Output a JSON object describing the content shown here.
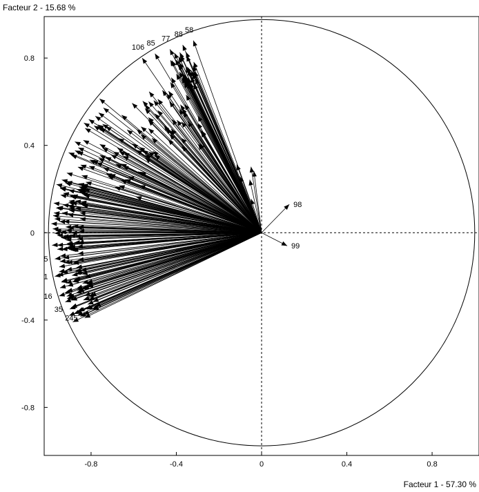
{
  "chart_data": {
    "type": "scatter",
    "subtype": "correlation-circle-vectors",
    "xlabel": "Facteur 1  -  57.30 %",
    "ylabel": "Facteur 2  -  15.68 %",
    "xlim": [
      -1.02,
      1.02
    ],
    "ylim": [
      -1.02,
      0.99
    ],
    "x_ticks": [
      -0.8,
      -0.4,
      0,
      0.4,
      0.8
    ],
    "y_ticks": [
      -0.8,
      -0.4,
      0,
      0.4,
      0.8
    ],
    "x_tick_labels": [
      "-0.8",
      "-0.4",
      "0",
      "0.4",
      "0.8"
    ],
    "y_tick_labels": [
      "-0.8",
      "-0.4",
      "0",
      "0.4",
      "0.8"
    ],
    "grid": false,
    "unit_circle": true,
    "origin_axes_dashed": true,
    "labeled_vectors": [
      {
        "label": "58",
        "x": -0.32,
        "y": 0.88
      },
      {
        "label": "88",
        "x": -0.37,
        "y": 0.86
      },
      {
        "label": "77",
        "x": -0.43,
        "y": 0.84
      },
      {
        "label": "85",
        "x": -0.5,
        "y": 0.82
      },
      {
        "label": "106",
        "x": -0.56,
        "y": 0.8
      },
      {
        "label": "98",
        "x": 0.13,
        "y": 0.13
      },
      {
        "label": "99",
        "x": 0.12,
        "y": -0.06
      },
      {
        "label": "275",
        "x": -0.97,
        "y": -0.12
      },
      {
        "label": "301",
        "x": -0.97,
        "y": -0.2
      },
      {
        "label": "216",
        "x": -0.95,
        "y": -0.29
      },
      {
        "label": "35",
        "x": -0.9,
        "y": -0.35
      },
      {
        "label": "245",
        "x": -0.83,
        "y": -0.39
      }
    ],
    "unlabeled_vector_groups": [
      {
        "angle_deg": [
          112,
          119
        ],
        "radius": [
          0.75,
          0.92
        ],
        "count": 40
      },
      {
        "angle_deg": [
          119,
          140
        ],
        "radius": [
          0.5,
          0.85
        ],
        "count": 45
      },
      {
        "angle_deg": [
          140,
          165
        ],
        "radius": [
          0.6,
          0.98
        ],
        "count": 70
      },
      {
        "angle_deg": [
          165,
          185
        ],
        "radius": [
          0.85,
          0.99
        ],
        "count": 80
      },
      {
        "angle_deg": [
          185,
          205
        ],
        "radius": [
          0.85,
          0.98
        ],
        "count": 75
      },
      {
        "angle_deg": [
          95,
          112
        ],
        "radius": [
          0.15,
          0.35
        ],
        "count": 6
      }
    ]
  }
}
